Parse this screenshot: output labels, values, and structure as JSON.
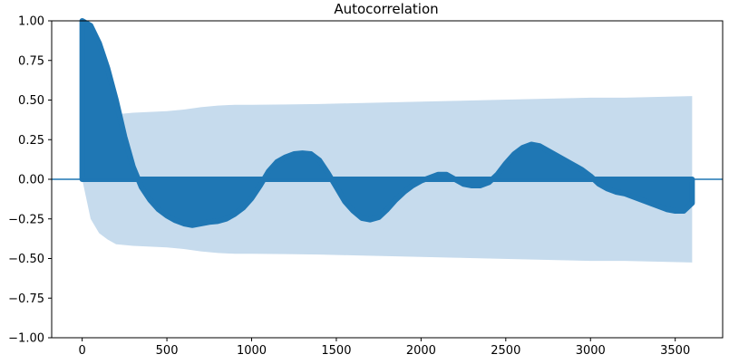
{
  "chart_data": {
    "type": "area",
    "title": "Autocorrelation",
    "xlabel": "",
    "ylabel": "",
    "xlim": [
      -180,
      3780
    ],
    "ylim": [
      -1.0,
      1.0
    ],
    "x_ticks": [
      0,
      500,
      1000,
      1500,
      2000,
      2500,
      3000,
      3500
    ],
    "x_tick_labels": [
      "0",
      "500",
      "1000",
      "1500",
      "2000",
      "2500",
      "3000",
      "3500"
    ],
    "y_ticks": [
      -1.0,
      -0.75,
      -0.5,
      -0.25,
      0.0,
      0.25,
      0.5,
      0.75,
      1.0
    ],
    "y_tick_labels": [
      "−1.00",
      "−0.75",
      "−0.50",
      "−0.25",
      "0.00",
      "0.25",
      "0.50",
      "0.75",
      "1.00"
    ],
    "grid": false,
    "legend": "none",
    "colors": {
      "acf": "#1f77b4",
      "confidence_band": "#c6dbed",
      "zero_line": "#1f77b4"
    },
    "series": [
      {
        "kind": "acf",
        "x": [
          0,
          50,
          100,
          150,
          200,
          250,
          300,
          350,
          400,
          450,
          500,
          550,
          600,
          650,
          700,
          750,
          800,
          850,
          900,
          950,
          1000,
          1050,
          1100,
          1150,
          1200,
          1250,
          1300,
          1350,
          1400,
          1450,
          1500,
          1550,
          1600,
          1650,
          1700,
          1750,
          1800,
          1850,
          1900,
          1950,
          2000,
          2050,
          2100,
          2150,
          2200,
          2250,
          2300,
          2350,
          2400,
          2450,
          2500,
          2550,
          2600,
          2650,
          2700,
          2750,
          2800,
          2850,
          2900,
          2950,
          3000,
          3050,
          3100,
          3150,
          3200,
          3250,
          3300,
          3350,
          3400,
          3450,
          3500,
          3550,
          3600
        ],
        "y": [
          1.0,
          0.97,
          0.86,
          0.7,
          0.5,
          0.27,
          0.08,
          -0.05,
          -0.13,
          -0.19,
          -0.23,
          -0.26,
          -0.28,
          -0.29,
          -0.28,
          -0.27,
          -0.265,
          -0.25,
          -0.22,
          -0.18,
          -0.12,
          -0.04,
          0.05,
          0.11,
          0.14,
          0.16,
          0.165,
          0.16,
          0.12,
          0.04,
          -0.05,
          -0.14,
          -0.2,
          -0.245,
          -0.255,
          -0.24,
          -0.19,
          -0.13,
          -0.08,
          -0.04,
          -0.01,
          0.01,
          0.03,
          0.03,
          0.0,
          -0.03,
          -0.04,
          -0.04,
          -0.02,
          0.03,
          0.1,
          0.16,
          0.2,
          0.22,
          0.21,
          0.18,
          0.15,
          0.12,
          0.09,
          0.06,
          0.02,
          -0.03,
          -0.06,
          -0.08,
          -0.09,
          -0.11,
          -0.13,
          -0.15,
          -0.17,
          -0.19,
          -0.2,
          -0.2,
          -0.15
        ]
      },
      {
        "kind": "confidence_band",
        "x": [
          0,
          50,
          100,
          150,
          200,
          300,
          400,
          500,
          600,
          700,
          800,
          900,
          1000,
          1200,
          1400,
          1600,
          1800,
          2000,
          2200,
          2400,
          2600,
          2800,
          3000,
          3200,
          3400,
          3600
        ],
        "upper": [
          0.0,
          0.25,
          0.34,
          0.38,
          0.41,
          0.42,
          0.425,
          0.43,
          0.44,
          0.455,
          0.465,
          0.47,
          0.47,
          0.472,
          0.475,
          0.48,
          0.485,
          0.49,
          0.495,
          0.5,
          0.505,
          0.51,
          0.515,
          0.515,
          0.52,
          0.525
        ],
        "lower": [
          0.0,
          -0.25,
          -0.34,
          -0.38,
          -0.41,
          -0.42,
          -0.425,
          -0.43,
          -0.44,
          -0.455,
          -0.465,
          -0.47,
          -0.47,
          -0.472,
          -0.475,
          -0.48,
          -0.485,
          -0.49,
          -0.495,
          -0.5,
          -0.505,
          -0.51,
          -0.515,
          -0.515,
          -0.52,
          -0.525
        ]
      }
    ]
  }
}
